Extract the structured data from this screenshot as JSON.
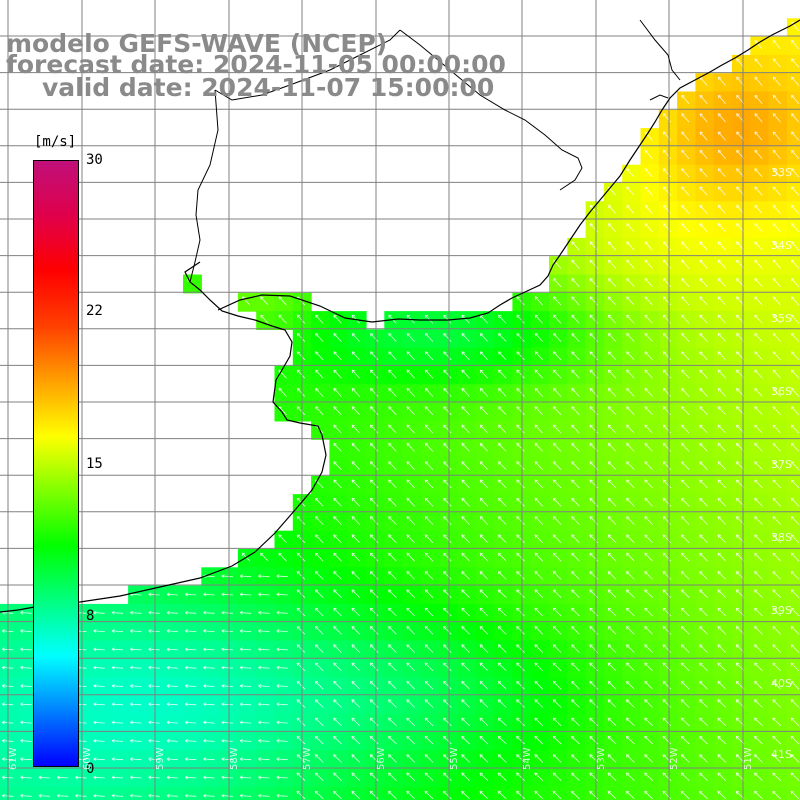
{
  "title": {
    "line1": "modelo GEFS-WAVE (NCEP)",
    "line2": "forecast date: 2024-11-05 00:00:00",
    "line3": "valid date: 2024-11-07 15:00:00"
  },
  "colorbar": {
    "unit": "[m/s]",
    "ticks": [
      "30",
      "22",
      "15",
      "8",
      "0"
    ],
    "range": [
      0,
      30
    ],
    "colors": [
      "#0000ff",
      "#0080ff",
      "#00ffff",
      "#00ff80",
      "#00ff00",
      "#80ff00",
      "#ffff00",
      "#ffa000",
      "#ff4000",
      "#ff0000",
      "#e0004a",
      "#c0107a"
    ]
  },
  "map": {
    "field": "wind speed with direction arrows",
    "land_color": "#ffffff",
    "coast_color": "#000000",
    "grid_color": "#808080",
    "lat_labels": [
      "33S",
      "34S",
      "35S",
      "36S",
      "37S",
      "38S",
      "39S",
      "40S",
      "41S"
    ],
    "lon_labels": [
      "61W",
      "60W",
      "59W",
      "58W",
      "57W",
      "56W",
      "55W",
      "54W",
      "53W",
      "52W",
      "51W"
    ]
  }
}
